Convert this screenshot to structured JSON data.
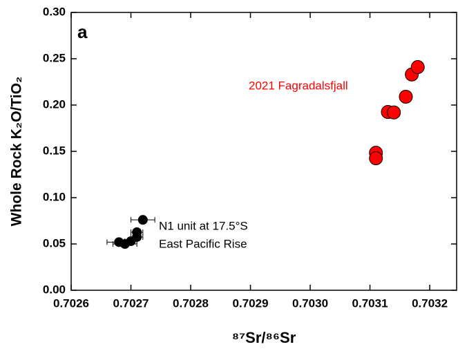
{
  "chart_data": {
    "type": "scatter",
    "panel_label": "a",
    "xlabel": "⁸⁷Sr/⁸⁶Sr",
    "ylabel": "Whole Rock K₂O/TiO₂",
    "xlim": [
      0.7026,
      0.703245
    ],
    "ylim": [
      0,
      0.3
    ],
    "xticks": [
      0.7026,
      0.7027,
      0.7028,
      0.7029,
      {
        "value": 0.703,
        "label": "0.7030"
      },
      0.7031,
      0.7032
    ],
    "yticks": [
      {
        "value": 0,
        "label": "0.00"
      },
      0.05,
      {
        "value": 0.1,
        "label": "0.10"
      },
      0.15,
      {
        "value": 0.2,
        "label": "0.20"
      },
      0.25,
      {
        "value": 0.3,
        "label": "0.30"
      }
    ],
    "series": [
      {
        "labels": [
          "N1 unit at 17.5°S",
          "East Pacific Rise"
        ],
        "color": "#000000",
        "x": [
          0.70272,
          0.70271,
          0.70271,
          0.7027,
          0.70269,
          0.70268
        ],
        "values": [
          0.076,
          0.0627,
          0.0575,
          0.053,
          0.05,
          0.052
        ],
        "x_errors": [
          2e-05,
          1e-05,
          1e-05,
          1e-05,
          2e-05,
          2e-05
        ],
        "y_errors": [
          0.002,
          0.002,
          0.002,
          0.002,
          0.002,
          0.002
        ]
      },
      {
        "labels": [
          "2021 Fagradalsfjall"
        ],
        "color": "#ff0000",
        "x": [
          0.70311,
          0.70311,
          0.70313,
          0.70314,
          0.70316,
          0.70317,
          0.70318
        ],
        "values": [
          0.1485,
          0.1425,
          0.1925,
          0.192,
          0.209,
          0.233,
          0.241
        ],
        "x_errors": [
          5e-06,
          5e-06,
          1e-05,
          1e-05,
          5e-06,
          5e-06,
          5e-06
        ],
        "y_errors": [
          0.004,
          0.004,
          0.005,
          0.005,
          0.006,
          0.006,
          0.006
        ]
      }
    ]
  }
}
